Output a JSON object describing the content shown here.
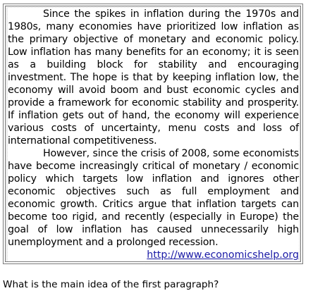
{
  "passage": {
    "paragraph_1": "Since the spikes in inflation during the 1970s and 1980s, many economies have prioritized low inflation as the primary objective of monetary and economic policy. Low inflation has many benefits for an economy; it is seen as a building block for stability and encouraging investment. The hope is that by keeping inflation low, the economy will avoid boom and bust economic cycles and provide a framework for economic stability and prosperity. If inflation gets out of hand, the economy will experience various costs of uncertainty, menu costs and loss of international competitiveness.",
    "paragraph_2": "However, since the crisis of 2008, some economists have become increasingly critical of monetary / economic policy which targets low inflation and ignores other economic objectives such as full employment and economic growth. Critics argue that inflation targets can become too rigid, and recently (especially in Europe) the goal of low inflation has caused unnecessarily high unemployment and a prolonged recession.",
    "source_url": "http://www.economicshelp.org"
  },
  "question": "What is the main idea of the first paragraph?"
}
